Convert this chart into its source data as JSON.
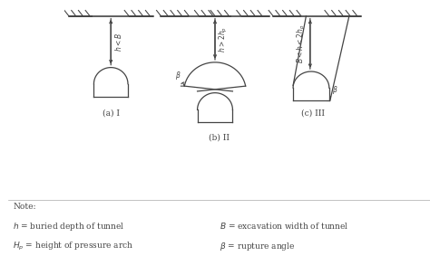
{
  "bg_color": "#ffffff",
  "line_color": "#444444",
  "labels_a": "(a) I",
  "labels_b": "(b) II",
  "labels_c": "(c) III",
  "arrow_label_a": "$h < B$",
  "arrow_label_b": "$h > 2h_p$",
  "arrow_label_c": "$B < h < 2h_p$"
}
